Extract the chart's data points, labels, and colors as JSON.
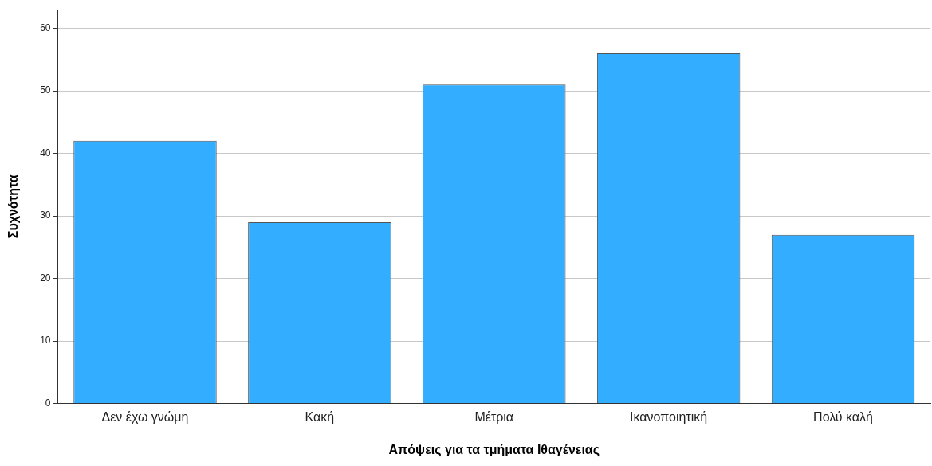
{
  "chart_data": {
    "type": "bar",
    "xlabel": "Απόψεις για τα τμήματα Ιθαγένειας",
    "ylabel": "Συχνότητα",
    "categories": [
      "Δεν έχω γνώμη",
      "Κακή",
      "Μέτρια",
      "Ικανοποιητική",
      "Πολύ καλή"
    ],
    "values": [
      42,
      29,
      51,
      56,
      27
    ],
    "color": "#33adff",
    "ylim": [
      0,
      63
    ],
    "yticks": [
      0,
      10,
      20,
      30,
      40,
      50,
      60
    ],
    "grid": "y",
    "legend": false
  }
}
